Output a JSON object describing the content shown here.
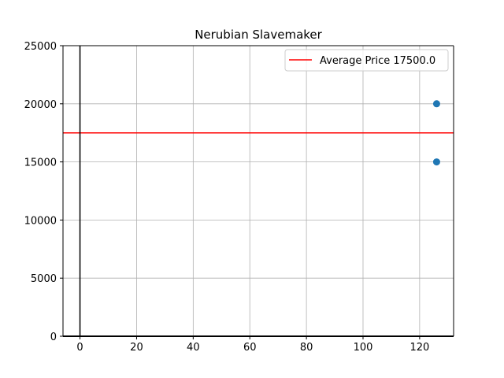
{
  "chart_data": {
    "type": "scatter",
    "title": "Nerubian Slavemaker",
    "xlabel": "",
    "ylabel": "",
    "xlim": [
      -6,
      132
    ],
    "ylim": [
      0,
      25000
    ],
    "x_ticks": [
      0,
      20,
      40,
      60,
      80,
      100,
      120
    ],
    "y_ticks": [
      0,
      5000,
      10000,
      15000,
      20000,
      25000
    ],
    "grid": true,
    "legend_position": "top-right",
    "series": [
      {
        "type": "scatter",
        "color": "#1f77b4",
        "points": [
          {
            "x": 126,
            "y": 20000
          },
          {
            "x": 126,
            "y": 15000
          }
        ]
      }
    ],
    "reference_lines": [
      {
        "orientation": "horizontal",
        "y": 17500,
        "color": "#ff0000",
        "label": "Average Price 17500.0"
      },
      {
        "orientation": "vertical",
        "x": 0,
        "color": "#000000"
      }
    ]
  }
}
